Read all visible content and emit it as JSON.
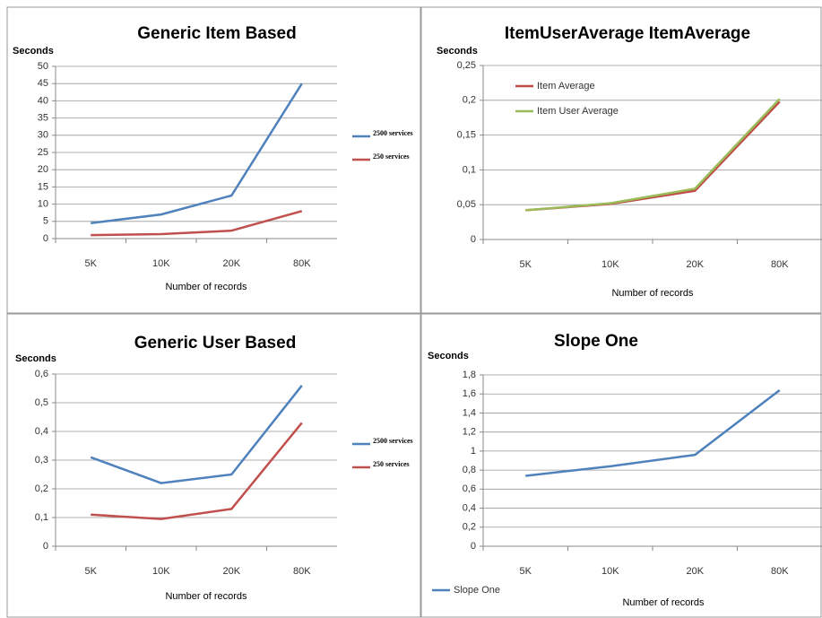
{
  "chart_data": [
    {
      "type": "line",
      "title": "Generic Item Based",
      "y_label": "Seconds",
      "x_label": "Number of records",
      "categories": [
        "5K",
        "10K",
        "20K",
        "80K"
      ],
      "series": [
        {
          "name": "2500 services",
          "color": "#4f81bd",
          "values": [
            4.5,
            7,
            12.5,
            45
          ]
        },
        {
          "name": "250 services",
          "color": "#c0504d",
          "values": [
            1,
            1.3,
            2.3,
            8
          ]
        }
      ],
      "ylim": [
        0,
        50
      ],
      "yticks": [
        0,
        5,
        10,
        15,
        20,
        25,
        30,
        35,
        40,
        45,
        50
      ],
      "grid": true,
      "legend": "right"
    },
    {
      "type": "line",
      "title": "ItemUserAverage      ItemAverage",
      "y_label": "Seconds",
      "x_label": "Number of records",
      "categories": [
        "5K",
        "10K",
        "20K",
        "80K"
      ],
      "series": [
        {
          "name": "Item Average",
          "color": "#be4b48",
          "values": [
            0.042,
            0.051,
            0.07,
            0.198
          ]
        },
        {
          "name": "Item User Average",
          "color": "#9bbb59",
          "values": [
            0.042,
            0.052,
            0.073,
            0.202
          ]
        }
      ],
      "ylim": [
        0,
        0.25
      ],
      "yticks": [
        0,
        {
          "value": 0.05,
          "label": "0,05"
        },
        {
          "value": 0.1,
          "label": "0,1"
        },
        {
          "value": 0.15,
          "label": "0,15"
        },
        {
          "value": 0.2,
          "label": "0,2"
        },
        {
          "value": 0.25,
          "label": "0,25"
        }
      ],
      "grid": true,
      "legend": "top-left"
    },
    {
      "type": "line",
      "title": "Generic User Based",
      "y_label": "Seconds",
      "x_label": "Number of records",
      "categories": [
        "5K",
        "10K",
        "20K",
        "80K"
      ],
      "series": [
        {
          "name": "2500 services",
          "color": "#4f81bd",
          "values": [
            0.31,
            0.22,
            0.25,
            0.56
          ]
        },
        {
          "name": "250 services",
          "color": "#c0504d",
          "values": [
            0.11,
            0.095,
            0.13,
            0.43
          ]
        }
      ],
      "ylim": [
        0,
        0.6
      ],
      "yticks": [
        0,
        {
          "value": 0.1,
          "label": "0,1"
        },
        {
          "value": 0.2,
          "label": "0,2"
        },
        {
          "value": 0.3,
          "label": "0,3"
        },
        {
          "value": 0.4,
          "label": "0,4"
        },
        {
          "value": 0.5,
          "label": "0,5"
        },
        {
          "value": 0.6,
          "label": "0,6"
        }
      ],
      "grid": true,
      "legend": "right"
    },
    {
      "type": "line",
      "title": "Slope One",
      "y_label": "Seconds",
      "x_label": "Number of records",
      "categories": [
        "5K",
        "10K",
        "20K",
        "80K"
      ],
      "series": [
        {
          "name": "Slope One",
          "color": "#4f81bd",
          "values": [
            0.74,
            0.84,
            0.96,
            1.64
          ]
        }
      ],
      "ylim": [
        0,
        1.8
      ],
      "yticks": [
        0,
        {
          "value": 0.2,
          "label": "0,2"
        },
        {
          "value": 0.4,
          "label": "0,4"
        },
        {
          "value": 0.6,
          "label": "0,6"
        },
        {
          "value": 0.8,
          "label": "0,8"
        },
        1,
        {
          "value": 1.2,
          "label": "1,2"
        },
        {
          "value": 1.4,
          "label": "1,4"
        },
        {
          "value": 1.6,
          "label": "1,6"
        },
        {
          "value": 1.8,
          "label": "1,8"
        }
      ],
      "grid": true,
      "legend": "bottom-left"
    }
  ]
}
